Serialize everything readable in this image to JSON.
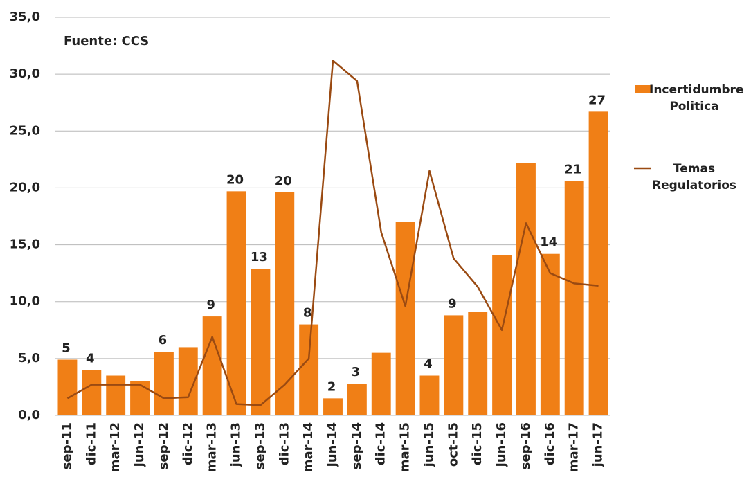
{
  "chart_data": {
    "type": "bar_line",
    "annotation": "Fuente: CCS",
    "categories": [
      "sep-11",
      "dic-11",
      "mar-12",
      "jun-12",
      "sep-12",
      "dic-12",
      "mar-13",
      "jun-13",
      "sep-13",
      "dic-13",
      "mar-14",
      "jun-14",
      "sep-14",
      "dic-14",
      "mar-15",
      "jun-15",
      "oct-15",
      "dic-15",
      "jun-16",
      "sep-16",
      "dic-16",
      "mar-17",
      "jun-17"
    ],
    "series": [
      {
        "name": "Incertidumbre Politica",
        "type": "bar",
        "color": "#f07f16",
        "values": [
          4.9,
          4.0,
          3.5,
          3.0,
          5.6,
          6.0,
          8.7,
          19.7,
          12.9,
          19.6,
          8.0,
          1.5,
          2.8,
          5.5,
          17.0,
          3.5,
          8.8,
          9.1,
          14.1,
          22.2,
          14.2,
          20.6,
          26.7
        ],
        "value_labels": [
          "5",
          "4",
          null,
          null,
          "6",
          null,
          "9",
          "20",
          "13",
          "20",
          "8",
          "2",
          "3",
          null,
          null,
          "4",
          "9",
          null,
          null,
          null,
          "14",
          "21",
          "27"
        ]
      },
      {
        "name": "Temas Regulatorios",
        "type": "line",
        "color": "#9a4a12",
        "values": [
          1.5,
          2.7,
          2.7,
          2.7,
          1.5,
          1.6,
          6.9,
          1.0,
          0.9,
          2.7,
          5.0,
          31.2,
          29.4,
          16.1,
          9.6,
          21.5,
          13.8,
          11.3,
          7.5,
          16.9,
          12.5,
          11.6,
          11.4
        ]
      }
    ],
    "ylim": [
      0,
      35
    ],
    "yticks": [
      {
        "value": 0,
        "label": "0,0"
      },
      {
        "value": 5,
        "label": "5,0"
      },
      {
        "value": 10,
        "label": "10,0"
      },
      {
        "value": 15,
        "label": "15,0"
      },
      {
        "value": 20,
        "label": "20,0"
      },
      {
        "value": 25,
        "label": "25,0"
      },
      {
        "value": 30,
        "label": "30,0"
      },
      {
        "value": 35,
        "label": "35,0"
      }
    ],
    "grid": true
  }
}
